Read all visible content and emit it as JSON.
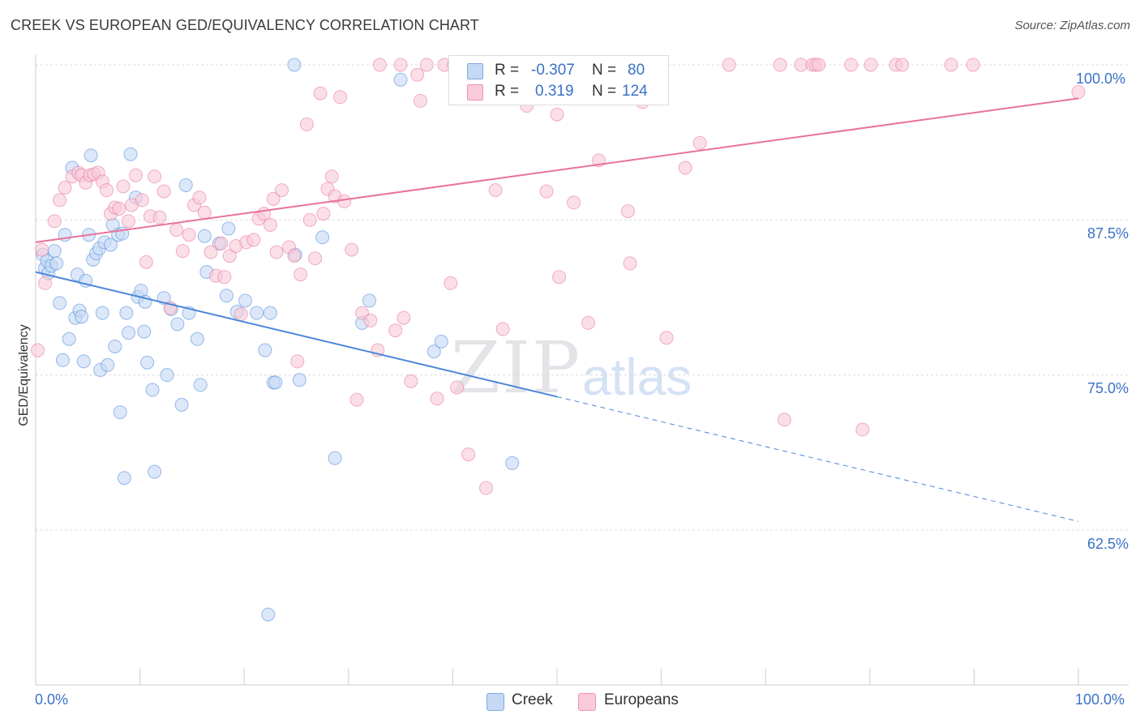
{
  "header": {
    "title": "CREEK VS EUROPEAN GED/EQUIVALENCY CORRELATION CHART",
    "source": "Source: ZipAtlas.com"
  },
  "watermark": {
    "part1": "ZIP",
    "part2": "atlas"
  },
  "legend_top": {
    "rows": [
      {
        "r_label": "R =",
        "r_value": "-0.307",
        "n_label": "N =",
        "n_value": "80",
        "color": "#4a86d8"
      },
      {
        "r_label": "R =",
        "r_value": "0.319",
        "n_label": "N =",
        "n_value": "124",
        "color": "#e8729a"
      }
    ]
  },
  "legend_bottom": {
    "items": [
      "Creek",
      "Europeans"
    ]
  },
  "chart_data": {
    "type": "scatter",
    "title": "CREEK VS EUROPEAN GED/EQUIVALENCY CORRELATION CHART",
    "xlabel": "",
    "ylabel": "GED/Equivalency",
    "xlim": [
      0,
      100
    ],
    "ylim": [
      50,
      100.8
    ],
    "x_tick_labels": [
      "0.0%",
      "100.0%"
    ],
    "y_ticks": [
      62.5,
      75.0,
      87.5,
      100.0
    ],
    "y_tick_labels": [
      "62.5%",
      "75.0%",
      "87.5%",
      "100.0%"
    ],
    "grid": "horizontal dashed",
    "legend_placement": "top-center",
    "series": [
      {
        "name": "Creek",
        "color": "#4a86d8",
        "fill": "#c5d9f5",
        "R": -0.307,
        "N": 80,
        "trend": {
          "x0": 0,
          "y0": 83.3,
          "x1": 100,
          "y1": 63.2,
          "solid_until_x": 50
        },
        "points": [
          [
            0.7,
            84.7
          ],
          [
            0.9,
            83.6
          ],
          [
            1.1,
            84.2
          ],
          [
            1.2,
            83.2
          ],
          [
            1.5,
            83.8
          ],
          [
            1.8,
            85.0
          ],
          [
            2.0,
            84.0
          ],
          [
            2.3,
            80.8
          ],
          [
            2.6,
            76.2
          ],
          [
            2.8,
            86.3
          ],
          [
            3.2,
            77.9
          ],
          [
            3.5,
            91.7
          ],
          [
            3.8,
            79.6
          ],
          [
            4.0,
            83.1
          ],
          [
            4.2,
            80.2
          ],
          [
            4.4,
            79.7
          ],
          [
            4.6,
            76.1
          ],
          [
            4.8,
            82.6
          ],
          [
            5.1,
            86.3
          ],
          [
            5.3,
            92.7
          ],
          [
            5.5,
            84.3
          ],
          [
            5.8,
            84.8
          ],
          [
            6.1,
            85.2
          ],
          [
            6.2,
            75.4
          ],
          [
            6.4,
            80.0
          ],
          [
            6.6,
            85.7
          ],
          [
            6.9,
            75.8
          ],
          [
            7.2,
            85.5
          ],
          [
            7.4,
            87.1
          ],
          [
            7.6,
            77.3
          ],
          [
            7.9,
            86.3
          ],
          [
            8.1,
            72.0
          ],
          [
            8.3,
            86.4
          ],
          [
            8.5,
            66.7
          ],
          [
            8.7,
            80.0
          ],
          [
            8.9,
            78.4
          ],
          [
            9.1,
            92.8
          ],
          [
            9.6,
            89.3
          ],
          [
            9.8,
            81.3
          ],
          [
            10.1,
            81.8
          ],
          [
            10.4,
            78.5
          ],
          [
            10.5,
            80.9
          ],
          [
            10.7,
            76.0
          ],
          [
            11.2,
            73.8
          ],
          [
            11.4,
            67.2
          ],
          [
            12.3,
            81.2
          ],
          [
            12.6,
            75.0
          ],
          [
            13.0,
            80.3
          ],
          [
            13.6,
            79.1
          ],
          [
            14.0,
            72.6
          ],
          [
            14.4,
            90.3
          ],
          [
            14.7,
            80.0
          ],
          [
            15.5,
            77.9
          ],
          [
            15.8,
            74.2
          ],
          [
            16.2,
            86.2
          ],
          [
            16.4,
            83.3
          ],
          [
            17.6,
            85.6
          ],
          [
            18.3,
            81.4
          ],
          [
            18.5,
            86.8
          ],
          [
            19.3,
            80.1
          ],
          [
            20.1,
            81.0
          ],
          [
            21.2,
            80.0
          ],
          [
            22.0,
            77.0
          ],
          [
            22.3,
            55.7
          ],
          [
            22.5,
            80.0
          ],
          [
            22.8,
            74.4
          ],
          [
            23.0,
            74.4
          ],
          [
            24.8,
            100.0
          ],
          [
            24.9,
            84.7
          ],
          [
            25.3,
            74.6
          ],
          [
            27.5,
            86.1
          ],
          [
            28.7,
            68.3
          ],
          [
            31.3,
            79.2
          ],
          [
            32.0,
            81.0
          ],
          [
            38.2,
            76.9
          ],
          [
            38.9,
            77.7
          ],
          [
            45.7,
            67.9
          ],
          [
            51.0,
            99.0
          ],
          [
            44.0,
            99.2
          ],
          [
            35.0,
            98.8
          ]
        ]
      },
      {
        "name": "Europeans",
        "color": "#e8729a",
        "fill": "#f9cad7",
        "R": 0.319,
        "N": 124,
        "trend": {
          "x0": 0,
          "y0": 85.7,
          "x1": 100,
          "y1": 97.3
        },
        "points": [
          [
            0.2,
            77.0
          ],
          [
            0.6,
            85.1
          ],
          [
            0.9,
            82.4
          ],
          [
            1.8,
            87.4
          ],
          [
            2.3,
            89.1
          ],
          [
            2.8,
            90.1
          ],
          [
            3.5,
            91.0
          ],
          [
            4.1,
            91.3
          ],
          [
            4.4,
            91.1
          ],
          [
            4.8,
            90.5
          ],
          [
            5.2,
            91.1
          ],
          [
            5.6,
            91.2
          ],
          [
            6.0,
            91.3
          ],
          [
            6.4,
            90.6
          ],
          [
            6.8,
            89.9
          ],
          [
            7.2,
            88.0
          ],
          [
            7.6,
            88.5
          ],
          [
            8.0,
            88.4
          ],
          [
            8.4,
            90.2
          ],
          [
            8.9,
            87.4
          ],
          [
            9.2,
            88.7
          ],
          [
            9.6,
            91.1
          ],
          [
            10.2,
            89.1
          ],
          [
            10.6,
            84.1
          ],
          [
            11.0,
            87.8
          ],
          [
            11.4,
            91.0
          ],
          [
            11.9,
            87.7
          ],
          [
            12.3,
            89.8
          ],
          [
            12.9,
            80.4
          ],
          [
            13.5,
            86.7
          ],
          [
            14.1,
            85.0
          ],
          [
            14.7,
            86.3
          ],
          [
            15.2,
            88.7
          ],
          [
            15.7,
            89.3
          ],
          [
            16.2,
            88.1
          ],
          [
            16.8,
            84.9
          ],
          [
            17.3,
            83.0
          ],
          [
            17.8,
            85.6
          ],
          [
            18.1,
            82.9
          ],
          [
            18.6,
            84.6
          ],
          [
            19.2,
            85.4
          ],
          [
            19.7,
            79.9
          ],
          [
            20.2,
            85.7
          ],
          [
            20.9,
            85.9
          ],
          [
            21.4,
            87.6
          ],
          [
            21.9,
            88.0
          ],
          [
            22.5,
            87.1
          ],
          [
            22.8,
            89.2
          ],
          [
            23.1,
            84.9
          ],
          [
            23.6,
            89.9
          ],
          [
            24.3,
            85.3
          ],
          [
            24.8,
            84.6
          ],
          [
            25.1,
            76.1
          ],
          [
            25.4,
            83.1
          ],
          [
            26.0,
            95.2
          ],
          [
            26.3,
            87.5
          ],
          [
            26.8,
            84.4
          ],
          [
            27.3,
            97.7
          ],
          [
            27.6,
            88.0
          ],
          [
            28.0,
            90.0
          ],
          [
            28.4,
            91.0
          ],
          [
            28.7,
            89.4
          ],
          [
            29.2,
            97.4
          ],
          [
            29.6,
            89.0
          ],
          [
            30.3,
            85.1
          ],
          [
            30.8,
            73.0
          ],
          [
            31.3,
            80.0
          ],
          [
            32.1,
            79.4
          ],
          [
            32.8,
            77.0
          ],
          [
            33.0,
            100.0
          ],
          [
            34.5,
            78.6
          ],
          [
            35.0,
            100.0
          ],
          [
            35.3,
            79.6
          ],
          [
            36.0,
            74.5
          ],
          [
            36.6,
            99.2
          ],
          [
            36.9,
            97.1
          ],
          [
            37.5,
            100.0
          ],
          [
            38.5,
            73.1
          ],
          [
            39.2,
            100.0
          ],
          [
            39.8,
            82.4
          ],
          [
            40.1,
            100.0
          ],
          [
            40.4,
            74.0
          ],
          [
            41.0,
            100.0
          ],
          [
            41.5,
            68.6
          ],
          [
            42.5,
            97.4
          ],
          [
            43.2,
            65.9
          ],
          [
            43.9,
            100.0
          ],
          [
            44.1,
            89.9
          ],
          [
            44.8,
            78.7
          ],
          [
            45.8,
            100.0
          ],
          [
            47.1,
            96.7
          ],
          [
            48.0,
            100.0
          ],
          [
            49.0,
            89.8
          ],
          [
            50.0,
            96.0
          ],
          [
            50.2,
            82.9
          ],
          [
            51.6,
            88.9
          ],
          [
            53.0,
            79.2
          ],
          [
            54.0,
            92.3
          ],
          [
            56.8,
            88.2
          ],
          [
            57.0,
            84.0
          ],
          [
            58.2,
            97.0
          ],
          [
            59.0,
            100.0
          ],
          [
            60.5,
            78.0
          ],
          [
            62.3,
            91.7
          ],
          [
            63.7,
            93.7
          ],
          [
            66.5,
            100.0
          ],
          [
            71.4,
            100.0
          ],
          [
            71.8,
            71.4
          ],
          [
            73.4,
            100.0
          ],
          [
            74.5,
            100.0
          ],
          [
            74.8,
            100.0
          ],
          [
            75.1,
            100.0
          ],
          [
            78.2,
            100.0
          ],
          [
            79.3,
            70.6
          ],
          [
            80.1,
            100.0
          ],
          [
            82.5,
            100.0
          ],
          [
            83.1,
            100.0
          ],
          [
            87.8,
            100.0
          ],
          [
            89.9,
            100.0
          ],
          [
            100.0,
            97.8
          ],
          [
            53.5,
            100.0
          ],
          [
            55.5,
            100.0
          ],
          [
            57.6,
            100.0
          ],
          [
            60.0,
            100.0
          ]
        ]
      }
    ]
  }
}
